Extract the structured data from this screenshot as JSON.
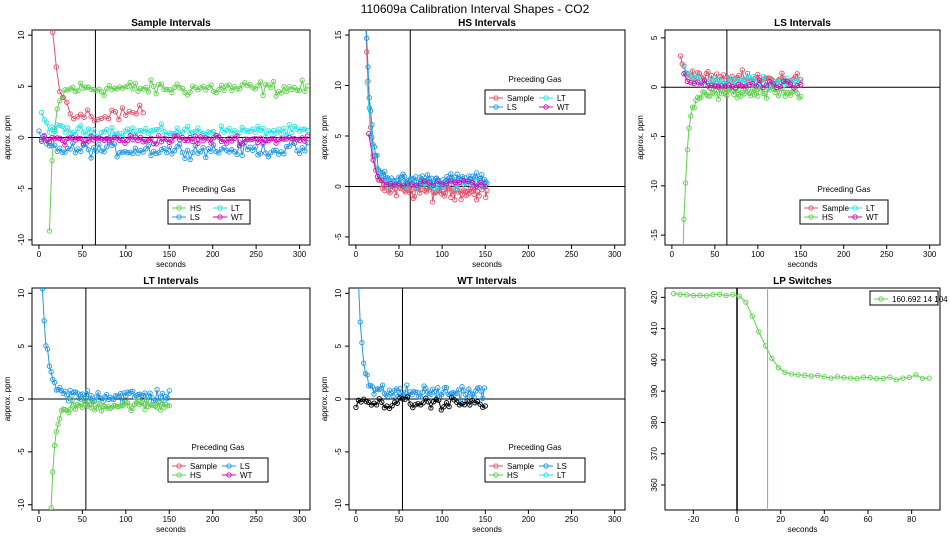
{
  "figure_title": "110609a   Calibration Interval Shapes - CO2",
  "colors": {
    "Sample": "#DF536B",
    "HS": "#61D04F",
    "LS": "#2297E6",
    "LT": "#28E2E5",
    "WT": "#CD0BBC",
    "self": "#000000",
    "LP": "#61D04F",
    "marker": "#000000",
    "lpline": "#61D04F"
  },
  "chart_data": [
    {
      "type": "scatter",
      "title": "Sample Intervals",
      "xlabel": "seconds",
      "ylabel": "approx. ppm",
      "xlim": [
        -8,
        312
      ],
      "ylim": [
        -10.5,
        10.5
      ],
      "xticks": [
        0,
        50,
        100,
        150,
        200,
        250,
        300
      ],
      "yticks": [
        -10,
        -5,
        0,
        5,
        10
      ],
      "vline": 65,
      "hline": 0,
      "legend": {
        "title": "Preceding Gas",
        "position": "bottom-center",
        "entries": [
          "HS",
          "LT",
          "LS",
          "WT"
        ]
      },
      "series": [
        {
          "name": "HS",
          "equil": 4.8,
          "amp": 1.1,
          "x0": 12,
          "x1": 310,
          "step": 3,
          "spike": -14,
          "tau": 5
        },
        {
          "name": "LT",
          "equil": 0.6,
          "amp": 0.8,
          "x0": 3,
          "x1": 310,
          "step": 3,
          "spike": 1.5,
          "tau": 8
        },
        {
          "name": "LS",
          "equil": -1.2,
          "amp": 1.0,
          "x0": 0,
          "x1": 310,
          "step": 3,
          "spike": 1.5,
          "tau": 8
        },
        {
          "name": "WT",
          "equil": -0.2,
          "amp": 0.7,
          "x0": 3,
          "x1": 310,
          "step": 3,
          "spike": 0,
          "tau": 8
        },
        {
          "name": "Sample",
          "equil": 2.2,
          "amp": 1.2,
          "x0": 12,
          "x1": 120,
          "step": 4,
          "spike": 16,
          "tau": 7
        }
      ]
    },
    {
      "type": "scatter",
      "title": "HS Intervals",
      "xlabel": "seconds",
      "ylabel": "approx. ppm",
      "xlim": [
        -8,
        312
      ],
      "ylim": [
        -5.8,
        15.5
      ],
      "xticks": [
        0,
        50,
        100,
        150,
        200,
        250,
        300
      ],
      "yticks": [
        -5,
        0,
        5,
        10,
        15
      ],
      "vline": 63,
      "hline": 0,
      "legend": {
        "title": "Preceding Gas",
        "position": "top-center",
        "entries": [
          "Sample",
          "LT",
          "LS",
          "WT"
        ]
      },
      "series": [
        {
          "name": "Sample",
          "equil": -0.4,
          "amp": 1.3,
          "x0": 11,
          "x1": 152,
          "step": 1.5,
          "spike": 18,
          "tau": 6
        },
        {
          "name": "LS",
          "equil": 0.6,
          "amp": 1.0,
          "x0": 11,
          "x1": 152,
          "step": 1.5,
          "spike": 18,
          "tau": 6
        },
        {
          "name": "LT",
          "equil": 0.2,
          "amp": 0.6,
          "x0": 13,
          "x1": 150,
          "step": 4,
          "spike": 10,
          "tau": 6
        },
        {
          "name": "WT",
          "equil": 0.3,
          "amp": 0.5,
          "x0": 15,
          "x1": 150,
          "step": 5,
          "spike": 5,
          "tau": 6
        }
      ]
    },
    {
      "type": "scatter",
      "title": "LS Intervals",
      "xlabel": "seconds",
      "ylabel": "approx. ppm",
      "xlim": [
        -8,
        312
      ],
      "ylim": [
        -16,
        5.8
      ],
      "xticks": [
        0,
        50,
        100,
        150,
        200,
        250,
        300
      ],
      "yticks": [
        -15,
        -10,
        -5,
        0,
        5
      ],
      "vline": 64,
      "hline": 0,
      "legend": {
        "title": "Preceding Gas",
        "position": "bottom-center",
        "entries": [
          "Sample",
          "LT",
          "HS",
          "WT"
        ]
      },
      "series": [
        {
          "name": "Sample",
          "equil": 0.8,
          "amp": 1.1,
          "x0": 10,
          "x1": 150,
          "step": 2,
          "spike": 2.5,
          "tau": 6
        },
        {
          "name": "HS",
          "equil": -0.6,
          "amp": 1.0,
          "x0": 12,
          "x1": 150,
          "step": 2,
          "spike": -20,
          "tau": 5
        },
        {
          "name": "LT",
          "equil": 0.5,
          "amp": 0.8,
          "x0": 14,
          "x1": 150,
          "step": 3,
          "spike": 2,
          "tau": 6
        },
        {
          "name": "WT",
          "equil": 0.2,
          "amp": 0.6,
          "x0": 14,
          "x1": 150,
          "step": 4,
          "spike": 1,
          "tau": 6
        }
      ]
    },
    {
      "type": "scatter",
      "title": "LT Intervals",
      "xlabel": "seconds",
      "ylabel": "approx. ppm",
      "xlim": [
        -8,
        312
      ],
      "ylim": [
        -10.5,
        10.5
      ],
      "xticks": [
        0,
        50,
        100,
        150,
        200,
        250,
        300
      ],
      "yticks": [
        -10,
        -5,
        0,
        5,
        10
      ],
      "vline": 54,
      "hline": 0,
      "legend": {
        "title": "Preceding Gas",
        "position": "bottom-center",
        "entries": [
          "Sample",
          "LS",
          "HS",
          "WT"
        ]
      },
      "series": [
        {
          "name": "LS",
          "equil": 0.3,
          "amp": 1.0,
          "x0": 2,
          "x1": 150,
          "step": 2,
          "spike": 14,
          "tau": 6
        },
        {
          "name": "HS",
          "equil": -0.6,
          "amp": 0.8,
          "x0": 12,
          "x1": 150,
          "step": 2,
          "spike": -14,
          "tau": 5
        }
      ]
    },
    {
      "type": "scatter",
      "title": "WT Intervals",
      "xlabel": "seconds",
      "ylabel": "approx. ppm",
      "xlim": [
        -8,
        312
      ],
      "ylim": [
        -10.5,
        10.5
      ],
      "xticks": [
        0,
        50,
        100,
        150,
        200,
        250,
        300
      ],
      "yticks": [
        -10,
        -5,
        0,
        5,
        10
      ],
      "vline": 54,
      "hline": 0,
      "legend": {
        "title": "Preceding Gas",
        "position": "bottom-center",
        "entries": [
          "Sample",
          "LS",
          "HS",
          "LT"
        ]
      },
      "series": [
        {
          "name": "LS",
          "equil": 0.6,
          "amp": 1.0,
          "x0": 1,
          "x1": 150,
          "step": 2,
          "spike": 16,
          "tau": 5
        },
        {
          "name": "self",
          "equil": -0.4,
          "amp": 0.8,
          "x0": 0,
          "x1": 150,
          "step": 3,
          "spike": 0,
          "tau": 5
        }
      ]
    },
    {
      "type": "line",
      "title": "LP Switches",
      "xlabel": "seconds",
      "ylabel": "",
      "xlim": [
        -33,
        93
      ],
      "ylim": [
        352,
        423
      ],
      "xticks": [
        -20,
        0,
        20,
        40,
        60,
        80
      ],
      "yticks": [
        360,
        370,
        380,
        390,
        400,
        410,
        420
      ],
      "vline": 0,
      "vline2": 14,
      "legend": {
        "title": "",
        "position": "top-right",
        "entries": [
          "160.692 14 104"
        ]
      },
      "series": [
        {
          "name": "LP",
          "x": [
            -29,
            -26,
            -23,
            -20,
            -17,
            -14,
            -11,
            -8,
            -5,
            -2,
            1,
            4,
            7,
            10,
            13,
            16,
            19,
            22,
            25,
            28,
            31,
            34,
            37,
            40,
            43,
            46,
            49,
            52,
            55,
            58,
            61,
            64,
            67,
            70,
            73,
            76,
            79,
            82,
            85,
            88
          ],
          "y": [
            421.2,
            421,
            420.8,
            420.6,
            420.7,
            420.5,
            420.9,
            421,
            420.6,
            420.9,
            420.4,
            418.5,
            414,
            409,
            404.5,
            400.5,
            397.5,
            396,
            395.5,
            395.2,
            395.1,
            394.8,
            395,
            394.6,
            394.2,
            394.6,
            394.3,
            394.2,
            394,
            394.5,
            394.3,
            394,
            394.1,
            394.5,
            393.6,
            394.2,
            394.4,
            395.2,
            394.1,
            394.2
          ]
        }
      ]
    }
  ]
}
